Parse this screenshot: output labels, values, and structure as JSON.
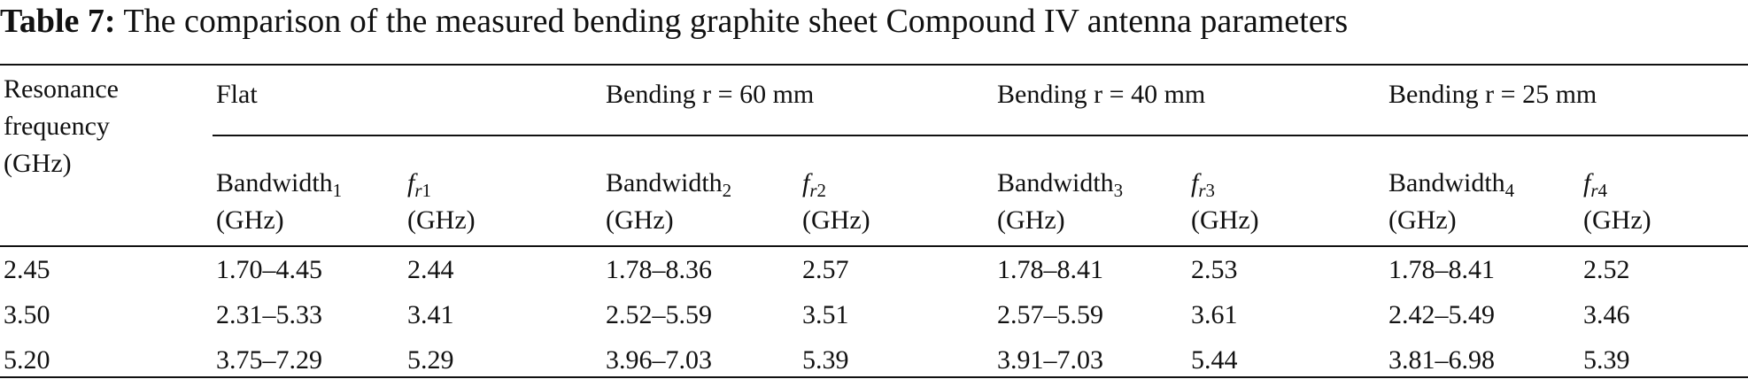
{
  "caption": {
    "label": "Table 7:",
    "text": "The comparison of the measured bending graphite sheet Compound IV antenna parameters"
  },
  "table": {
    "row_header": "Resonance frequency (GHz)",
    "groups": [
      "Flat",
      "Bending r = 60 mm",
      "Bending r = 40 mm",
      "Bending r = 25 mm"
    ],
    "subheaders": [
      {
        "main": "Bandwidth",
        "sub": "1",
        "unit": "(GHz)"
      },
      {
        "main": "f",
        "sub_italic": "r",
        "sub": "1",
        "unit": "(GHz)"
      },
      {
        "main": "Bandwidth",
        "sub": "2",
        "unit": "(GHz)"
      },
      {
        "main": "f",
        "sub_italic": "r",
        "sub": "2",
        "unit": "(GHz)"
      },
      {
        "main": "Bandwidth",
        "sub": "3",
        "unit": "(GHz)"
      },
      {
        "main": "f",
        "sub_italic": "r",
        "sub": "3",
        "unit": "(GHz)"
      },
      {
        "main": "Bandwidth",
        "sub": "4",
        "unit": "(GHz)"
      },
      {
        "main": "f",
        "sub_italic": "r",
        "sub": "4",
        "unit": "(GHz)"
      }
    ],
    "rows": [
      [
        "2.45",
        "1.70–4.45",
        "2.44",
        "1.78–8.36",
        "2.57",
        "1.78–8.41",
        "2.53",
        "1.78–8.41",
        "2.52"
      ],
      [
        "3.50",
        "2.31–5.33",
        "3.41",
        "2.52–5.59",
        "3.51",
        "2.57–5.59",
        "3.61",
        "2.42–5.49",
        "3.46"
      ],
      [
        "5.20",
        "3.75–7.29",
        "5.29",
        "3.96–7.03",
        "5.39",
        "3.91–7.03",
        "5.44",
        "3.81–6.98",
        "5.39"
      ]
    ]
  }
}
